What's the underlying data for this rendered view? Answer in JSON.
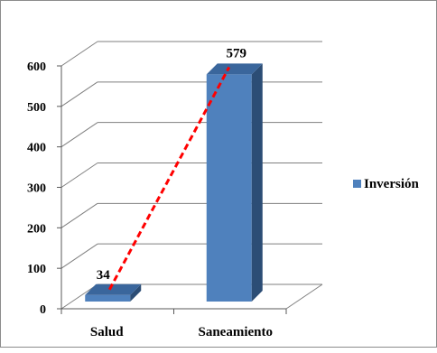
{
  "chart_data": {
    "type": "bar",
    "categories": [
      "Salud",
      "Saneamiento"
    ],
    "series": [
      {
        "name": "Inversión",
        "values": [
          34,
          579
        ]
      }
    ],
    "data_labels": [
      "34",
      "579"
    ],
    "ylim": [
      0,
      600
    ],
    "y_ticks": [
      "0",
      "100",
      "200",
      "300",
      "400",
      "500",
      "600"
    ],
    "grid": true,
    "style": "3d-bar",
    "legend_position": "right",
    "trend_line": {
      "style": "dashed",
      "color": "#ff0000"
    },
    "colors": {
      "bar_front": "#4f81bd",
      "bar_side": "#2c4d75",
      "bar_top": "#3a669c",
      "gridline": "#7f7f7f",
      "trend": "#ff0000"
    }
  }
}
